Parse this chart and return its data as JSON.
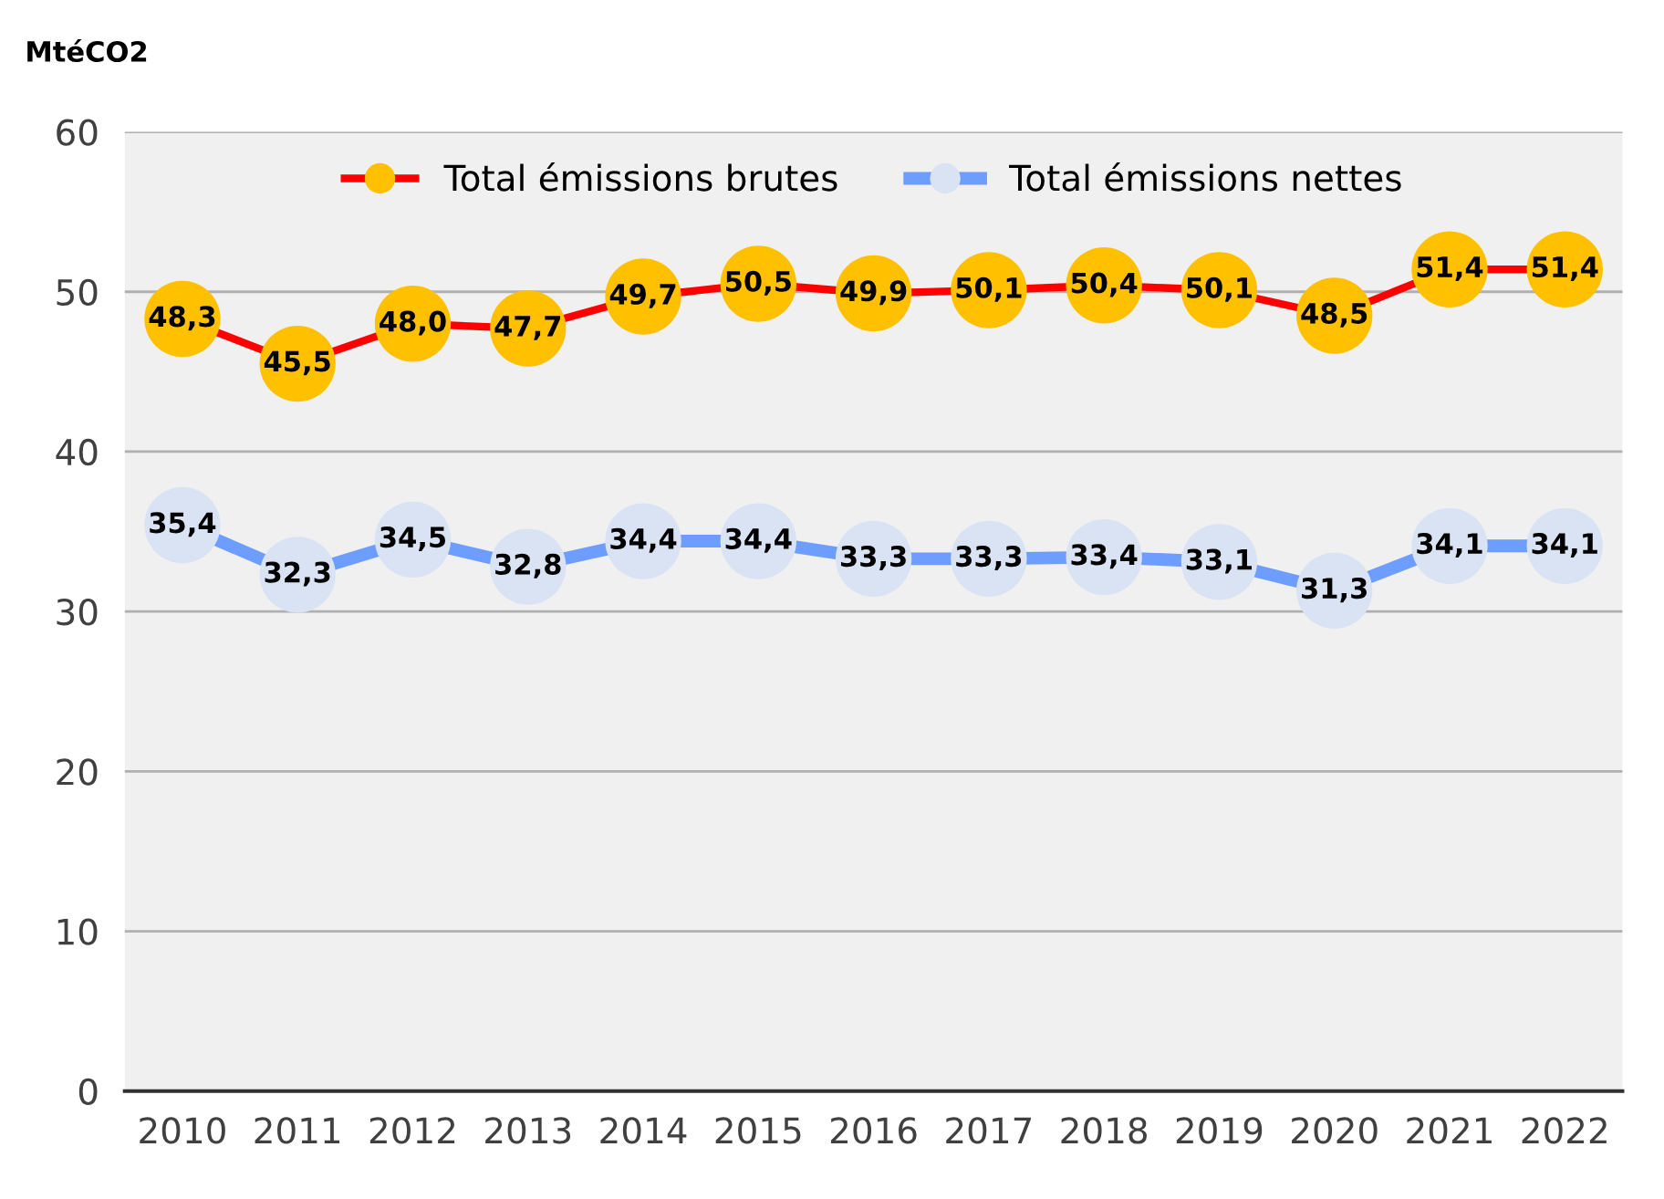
{
  "chart_data": {
    "type": "line",
    "ylabel": "MtéCO2",
    "categories": [
      "2010",
      "2011",
      "2012",
      "2013",
      "2014",
      "2015",
      "2016",
      "2017",
      "2018",
      "2019",
      "2020",
      "2021",
      "2022"
    ],
    "series": [
      {
        "name": "Total émissions brutes",
        "color": "#ff0000",
        "colors": [
          "#ffc000",
          "#ffc000",
          "#ffc000",
          "#ffc000",
          "#ffc000",
          "#ffc000",
          "#ffc000",
          "#ffc000",
          "#ffc000",
          "#ffc000",
          "#ffc000",
          "#ffc000",
          "#ffc000"
        ],
        "values": [
          48.3,
          45.5,
          48.0,
          47.7,
          49.7,
          50.5,
          49.9,
          50.1,
          50.4,
          50.1,
          48.5,
          51.4,
          51.4
        ],
        "value_labels": [
          "48,3",
          "45,5",
          "48,0",
          "47,7",
          "49,7",
          "50,5",
          "49,9",
          "50,1",
          "50,4",
          "50,1",
          "48,5",
          "51,4",
          "51,4"
        ]
      },
      {
        "name": "Total émissions nettes",
        "color": "#6d9eff",
        "colors": [
          "#dae3f3",
          "#dae3f3",
          "#dae3f3",
          "#dae3f3",
          "#dae3f3",
          "#dae3f3",
          "#dae3f3",
          "#dae3f3",
          "#dae3f3",
          "#dae3f3",
          "#dae3f3",
          "#dae3f3",
          "#dae3f3"
        ],
        "values": [
          35.4,
          32.3,
          34.5,
          32.8,
          34.4,
          34.4,
          33.3,
          33.3,
          33.4,
          33.1,
          31.3,
          34.1,
          34.1
        ],
        "value_labels": [
          "35,4",
          "32,3",
          "34,5",
          "32,8",
          "34,4",
          "34,4",
          "33,3",
          "33,3",
          "33,4",
          "33,1",
          "31,3",
          "34,1",
          "34,1"
        ]
      }
    ],
    "ylim": [
      0,
      60
    ],
    "yticks": [
      0,
      10,
      20,
      30,
      40,
      50,
      60
    ],
    "grid": "y",
    "legend": "top",
    "marker": "circle",
    "line_style": "solid"
  }
}
